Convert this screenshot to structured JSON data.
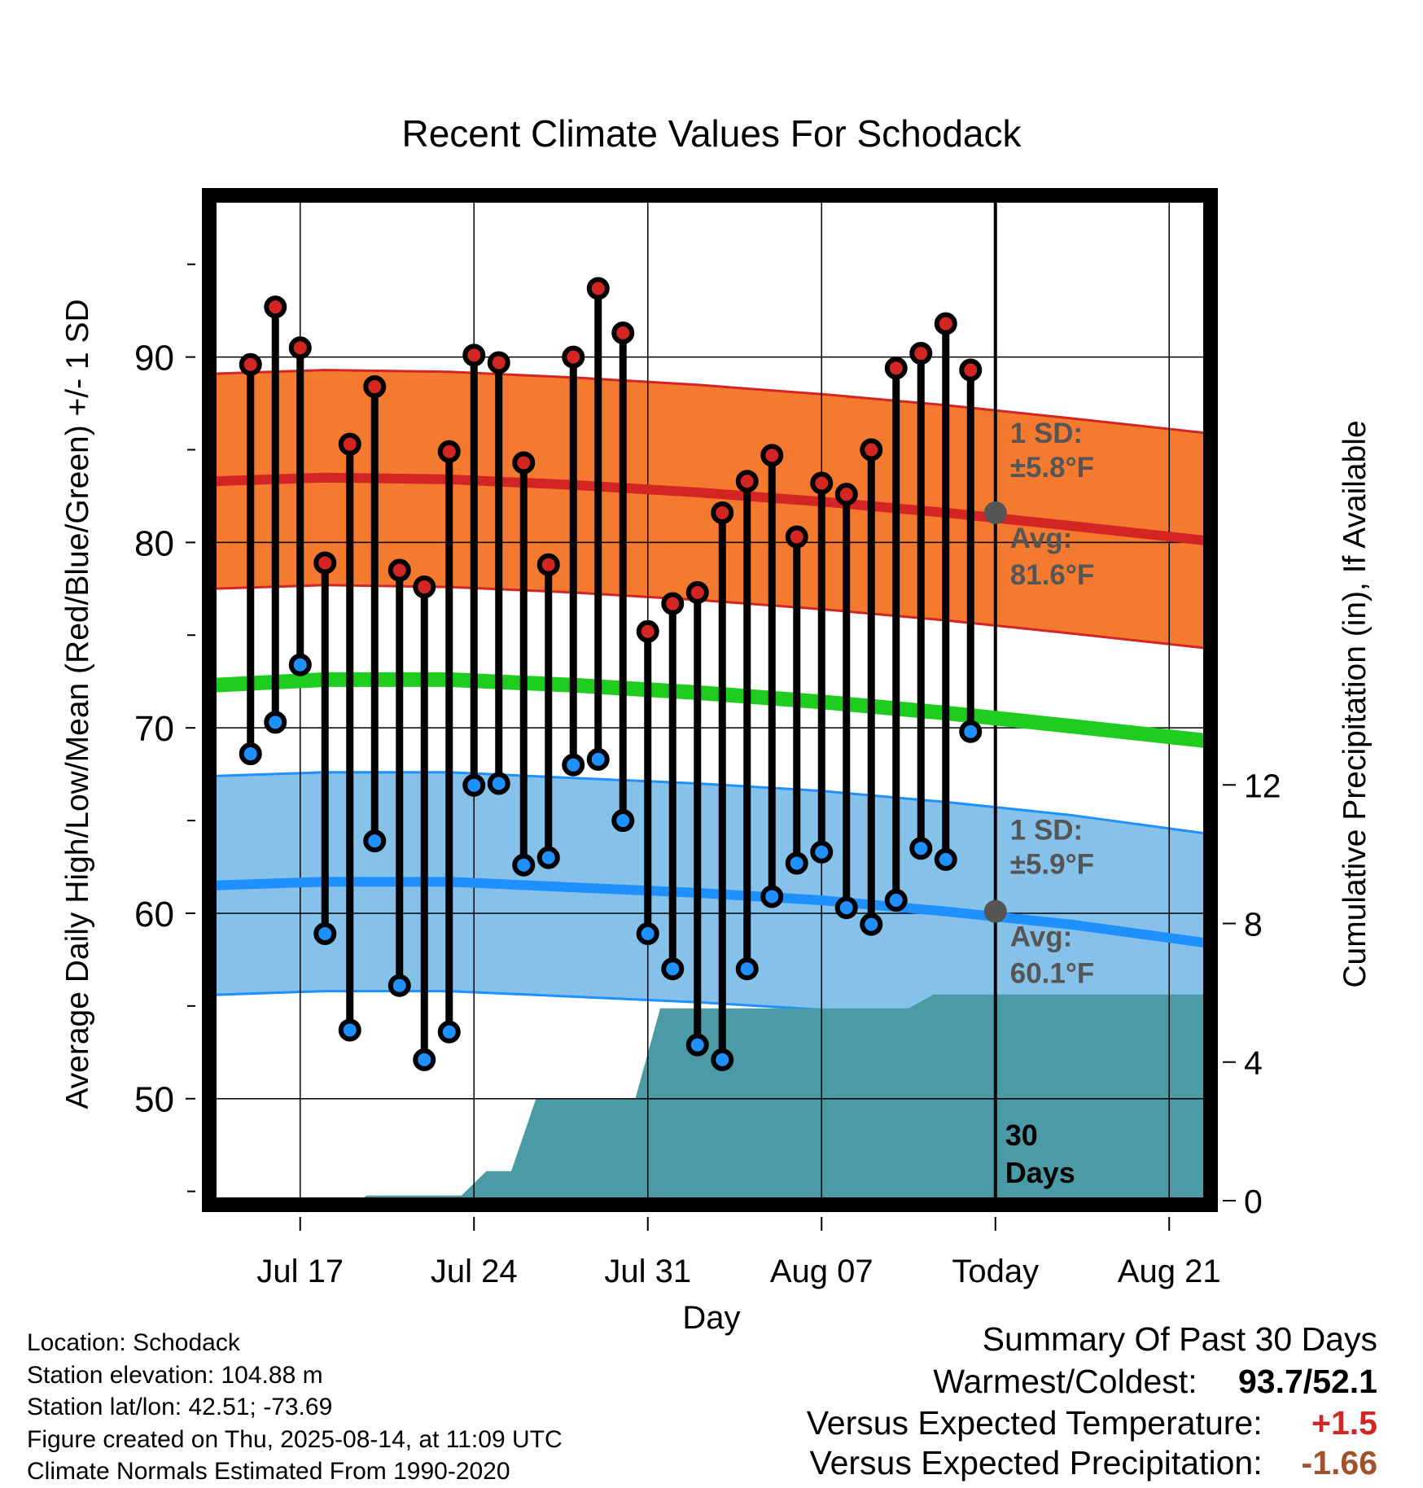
{
  "chart_data": {
    "type": "line",
    "title": "Recent Climate Values For Schodack",
    "xlabel": "Day",
    "ylabel": "Average Daily High/Low/Mean (Red/Blue/Green) +/- 1 SD",
    "y2label": "Cumulative Precipitation (in), If Available",
    "x_ticks": [
      "Jul 17",
      "Jul 24",
      "Jul 31",
      "Aug 07",
      "Today",
      "Aug 21"
    ],
    "x_tick_days": [
      3,
      10,
      17,
      24,
      31,
      38
    ],
    "xlim": [
      -0.5,
      39.5
    ],
    "ylim": [
      44.5,
      98.5
    ],
    "y_ticks": [
      50,
      60,
      70,
      80,
      90
    ],
    "y2lim": [
      0,
      28.9
    ],
    "y2_ticks": [
      0,
      4,
      8,
      12
    ],
    "days": [
      1,
      2,
      3,
      4,
      5,
      6,
      7,
      8,
      9,
      10,
      11,
      12,
      13,
      14,
      15,
      16,
      17,
      18,
      19,
      20,
      21,
      22,
      23,
      24,
      25,
      26,
      27,
      28,
      29,
      30
    ],
    "highs": [
      89.6,
      92.7,
      90.5,
      78.9,
      85.3,
      88.4,
      78.5,
      77.6,
      84.9,
      90.1,
      89.7,
      84.3,
      78.8,
      90.0,
      93.7,
      91.3,
      75.2,
      76.7,
      77.3,
      81.6,
      83.3,
      84.7,
      80.3,
      83.2,
      82.6,
      85.0,
      89.4,
      90.2,
      91.8,
      89.3
    ],
    "lows": [
      68.6,
      70.3,
      73.4,
      58.9,
      53.7,
      63.9,
      56.1,
      52.1,
      53.6,
      66.9,
      67.0,
      62.6,
      63.0,
      68.0,
      68.3,
      65.0,
      58.9,
      57.0,
      52.9,
      52.1,
      57.0,
      60.9,
      62.7,
      63.3,
      60.3,
      59.4,
      60.7,
      63.5,
      62.9,
      69.8
    ],
    "normals": {
      "days": [
        -0.5,
        4,
        9,
        14,
        19,
        24,
        29,
        34,
        39.5
      ],
      "high_avg": [
        83.3,
        83.5,
        83.4,
        83.1,
        82.7,
        82.2,
        81.6,
        80.9,
        80.1
      ],
      "high_sd": 5.8,
      "low_avg": [
        61.5,
        61.7,
        61.7,
        61.4,
        61.1,
        60.7,
        60.1,
        59.4,
        58.4
      ],
      "low_sd": 5.9,
      "mean_avg": [
        72.3,
        72.6,
        72.6,
        72.3,
        71.9,
        71.4,
        70.8,
        70.1,
        69.3
      ]
    },
    "precip": {
      "days": [
        -0.5,
        5.3,
        5.7,
        9.5,
        10.5,
        11.5,
        12.5,
        13.1,
        16.5,
        17.5,
        27.5,
        28.5,
        39.5
      ],
      "values": [
        0.0,
        0.0,
        0.15,
        0.15,
        0.85,
        0.85,
        2.95,
        2.95,
        2.95,
        5.55,
        5.55,
        5.95,
        5.95
      ]
    },
    "today_day": 31,
    "legend_high": {
      "sd_label": "1 SD:",
      "sd_value": "±5.8°F",
      "avg_label": "Avg:",
      "avg_value": "81.6°F",
      "avg": 81.6
    },
    "legend_low": {
      "sd_label": "1 SD:",
      "sd_value": "±5.9°F",
      "avg_label": "Avg:",
      "avg_value": "60.1°F",
      "avg": 60.1
    },
    "days_label_1": "30",
    "days_label_2": "Days",
    "colors": {
      "high_band": "#f47a30",
      "high_line": "#d42525",
      "low_band": "#85c1e9",
      "low_line": "#1e90ff",
      "mean_line": "#1ecd1e",
      "precip": "#4a9ba5",
      "high_marker": "#d42525",
      "low_marker": "#1e90ff",
      "legend_text": "#555555"
    }
  },
  "info": {
    "location": "Location: Schodack",
    "elevation": "Station elevation: 104.88 m",
    "latlon": "Station lat/lon: 42.51; -73.69",
    "created": "Figure created on Thu, 2025-08-14, at 11:09 UTC",
    "normals": "Climate Normals Estimated From 1990-2020"
  },
  "summary": {
    "title": "Summary Of Past 30 Days",
    "warm_cold_label": "Warmest/Coldest:",
    "warm_cold_value": "93.7/52.1",
    "temp_label": "Versus Expected Temperature:",
    "temp_value": "+1.5",
    "temp_color": "#d42525",
    "precip_label": "Versus Expected Precipitation:",
    "precip_value": "-1.66",
    "precip_color": "#a0522d"
  }
}
